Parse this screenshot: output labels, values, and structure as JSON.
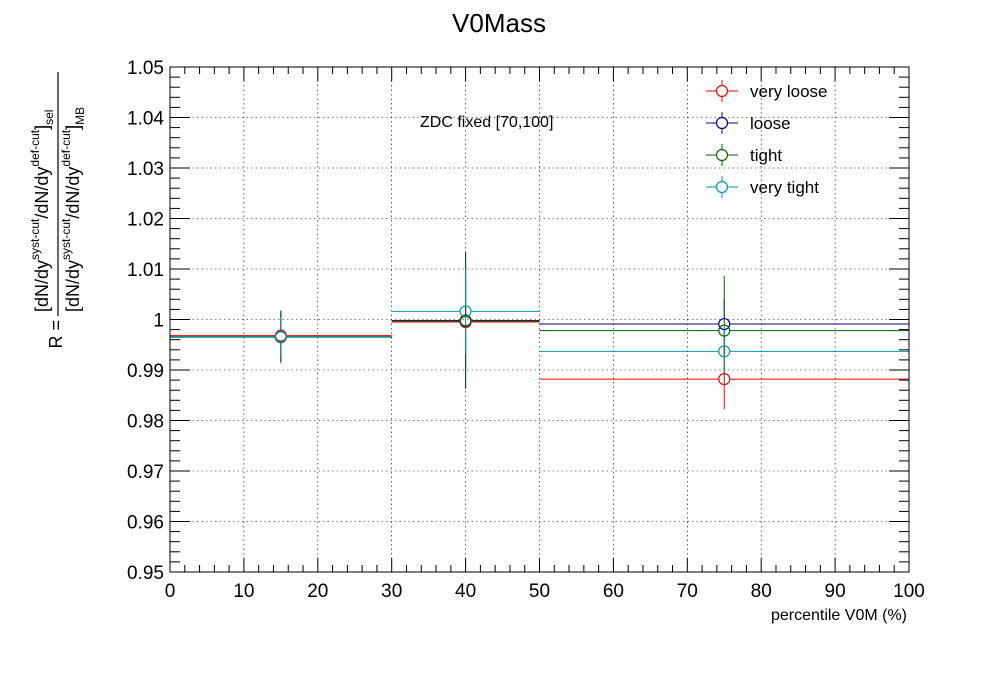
{
  "chart_data": {
    "type": "scatter",
    "title": "V0Mass",
    "xlabel": "percentile V0M (%)",
    "ylabel": {
      "prefix": "R = ",
      "num_a": "[dN/dy",
      "num_sup1": "syst-cut",
      "num_b": "/dN/dy",
      "num_sup2": "def-cut",
      "num_c": "]",
      "num_sub": "sel",
      "den_a": "[dN/dy",
      "den_sup1": "syst-cut",
      "den_b": "/dN/dy",
      "den_sup2": "def-cut",
      "den_c": "]",
      "den_sub": "MB"
    },
    "xlim": [
      0,
      100
    ],
    "ylim": [
      0.95,
      1.05
    ],
    "x_ticks": [
      0,
      10,
      20,
      30,
      40,
      50,
      60,
      70,
      80,
      90,
      100
    ],
    "y_ticks": [
      0.95,
      0.96,
      0.97,
      0.98,
      0.99,
      1.0,
      1.01,
      1.02,
      1.03,
      1.04,
      1.05
    ],
    "x_tick_labels": [
      "0",
      "10",
      "20",
      "30",
      "40",
      "50",
      "60",
      "70",
      "80",
      "90",
      "100"
    ],
    "y_tick_labels": [
      "0.95",
      "0.96",
      "0.97",
      "0.98",
      "0.99",
      "1",
      "1.01",
      "1.02",
      "1.03",
      "1.04",
      "1.05"
    ],
    "grid": true,
    "legend_position": "top-right",
    "annotation": "ZDC fixed [70,100]",
    "bins": [
      [
        0,
        30
      ],
      [
        30,
        50
      ],
      [
        50,
        100
      ]
    ],
    "x_centers": [
      15,
      40,
      75
    ],
    "series": [
      {
        "name": "very loose",
        "color": "#ff0000",
        "values": [
          0.9968,
          0.9995,
          0.9882
        ],
        "errors": [
          0.005,
          0.009,
          0.006
        ]
      },
      {
        "name": "loose",
        "color": "#000099",
        "values": [
          0.9966,
          0.9998,
          0.9991
        ],
        "errors": [
          0.0048,
          0.0135,
          0.005
        ]
      },
      {
        "name": "tight",
        "color": "#006600",
        "values": [
          0.9965,
          0.9997,
          0.9978
        ],
        "errors": [
          0.0052,
          0.013,
          0.0108
        ]
      },
      {
        "name": "very tight",
        "color": "#0099aa",
        "values": [
          0.9966,
          1.0016,
          0.9937
        ],
        "errors": [
          0.004,
          0.0085,
          0.005
        ]
      }
    ]
  }
}
